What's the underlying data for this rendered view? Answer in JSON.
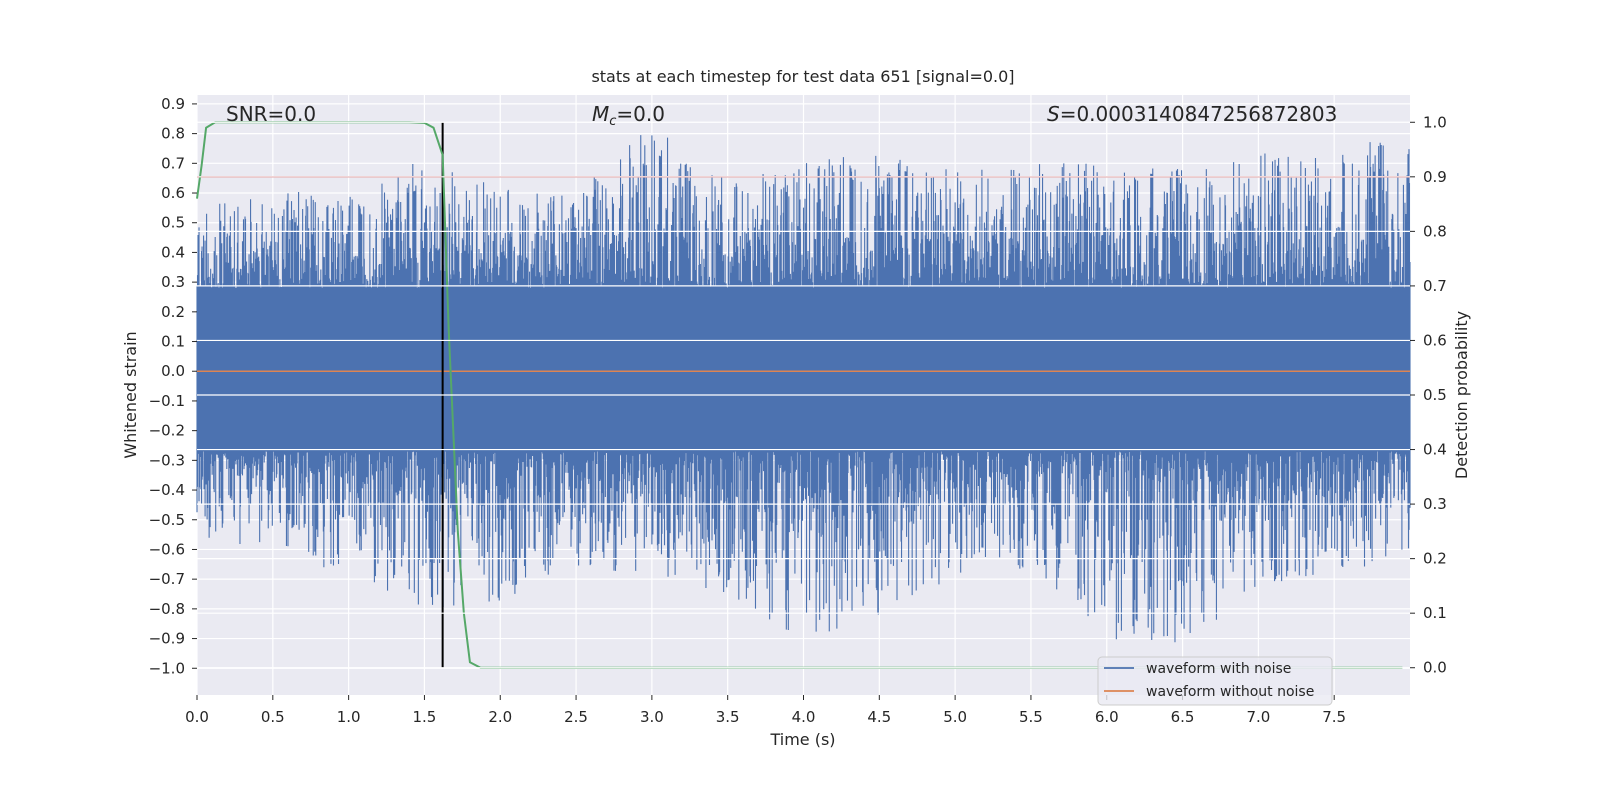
{
  "chart_data": {
    "type": "line",
    "title": "stats at each timestep for test data 651 [signal=0.0]",
    "xlabel": "Time (s)",
    "ylabel_left": "Whitened strain",
    "ylabel_right": "Detection probability",
    "xlim": [
      0.0,
      8.0
    ],
    "ylim_left": [
      -1.09,
      0.93
    ],
    "ylim_right": [
      -0.05,
      1.05
    ],
    "x_ticks": [
      "0.0",
      "0.5",
      "1.0",
      "1.5",
      "2.0",
      "2.5",
      "3.0",
      "3.5",
      "4.0",
      "4.5",
      "5.0",
      "5.5",
      "6.0",
      "6.5",
      "7.0",
      "7.5"
    ],
    "y_left_ticks": [
      "0.9",
      "0.8",
      "0.7",
      "0.6",
      "0.5",
      "0.4",
      "0.3",
      "0.2",
      "0.1",
      "0.0",
      "−0.1",
      "−0.2",
      "−0.3",
      "−0.4",
      "−0.5",
      "−0.6",
      "−0.7",
      "−0.8",
      "−0.9",
      "−1.0"
    ],
    "y_right_ticks": [
      "1.0",
      "0.9",
      "0.8",
      "0.7",
      "0.6",
      "0.5",
      "0.4",
      "0.3",
      "0.2",
      "0.1",
      "0.0"
    ],
    "grid": true,
    "legend_position": "bottom-right",
    "annotations": {
      "snr": "SNR=0.0",
      "mc_symbol": "M",
      "mc_sub": "c",
      "mc_value": "=0.0",
      "s_symbol": "S",
      "s_value": "=0.000314084725687280​3"
    },
    "series": [
      {
        "name": "waveform with noise",
        "axis": "left",
        "color": "#4c72b0",
        "note": "whitened noisy strain, approx. band envelope",
        "x": [
          0.0,
          0.5,
          1.0,
          1.5,
          2.0,
          2.5,
          3.0,
          3.5,
          4.0,
          4.5,
          5.0,
          5.5,
          6.0,
          6.5,
          7.0,
          7.5,
          8.0
        ],
        "upper": [
          0.55,
          0.6,
          0.62,
          0.72,
          0.62,
          0.6,
          0.84,
          0.66,
          0.7,
          0.75,
          0.68,
          0.7,
          0.7,
          0.68,
          0.74,
          0.72,
          0.83
        ],
        "lower": [
          -0.55,
          -0.62,
          -0.68,
          -0.8,
          -0.78,
          -0.66,
          -0.7,
          -0.76,
          -0.93,
          -0.82,
          -0.7,
          -0.66,
          -0.92,
          -0.96,
          -0.72,
          -0.7,
          -0.6
        ]
      },
      {
        "name": "waveform without noise",
        "axis": "left",
        "color": "#dd8452",
        "x": [
          0.0,
          8.0
        ],
        "y": [
          0.0,
          0.0
        ]
      },
      {
        "name": "",
        "axis": "right",
        "color": "#55a868",
        "x": [
          0.0,
          0.03,
          0.06,
          0.12,
          0.3,
          0.6,
          1.0,
          1.4,
          1.5,
          1.56,
          1.62,
          1.66,
          1.72,
          1.76,
          1.8,
          1.87,
          2.0,
          4.0,
          7.95
        ],
        "y": [
          0.86,
          0.92,
          0.99,
          1.0,
          1.0,
          1.0,
          1.0,
          1.0,
          0.999,
          0.99,
          0.94,
          0.62,
          0.25,
          0.1,
          0.01,
          0.0,
          0.0,
          0.0,
          0.0
        ]
      }
    ],
    "threshold_line": {
      "axis": "right",
      "value": 0.9,
      "color": "#c44e52"
    },
    "vertical_line": {
      "x": 1.62,
      "color": "#000000"
    },
    "legend": [
      "waveform with noise",
      "waveform without noise"
    ]
  }
}
